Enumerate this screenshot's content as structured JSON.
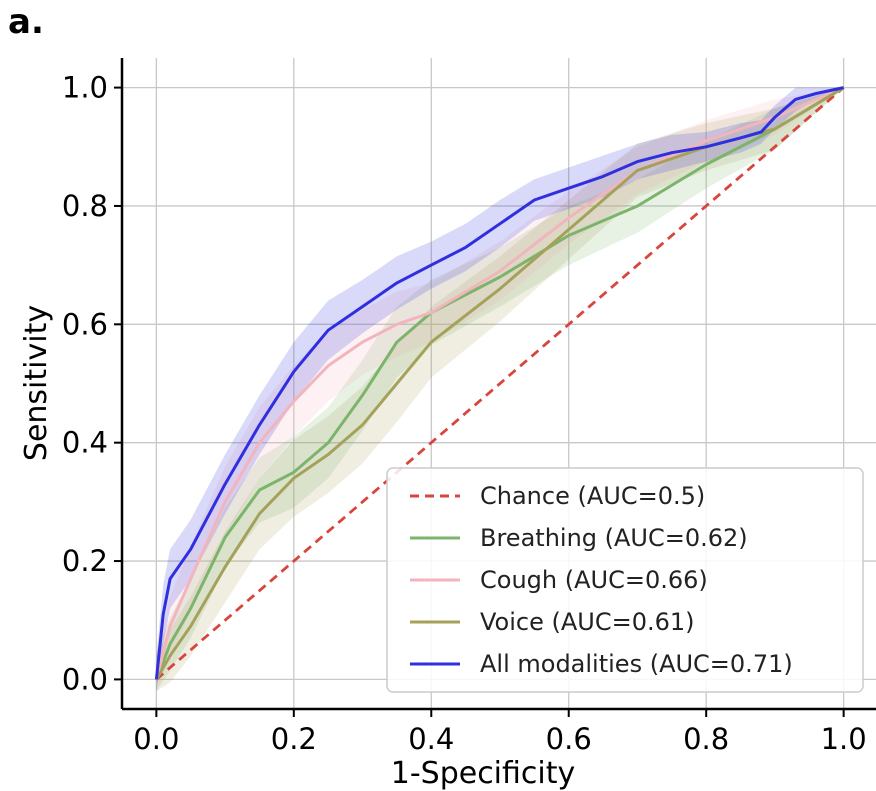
{
  "panel_label": "a.",
  "chart_data": {
    "type": "line",
    "title": "",
    "xlabel": "1-Specificity",
    "ylabel": "Sensitivity",
    "xlim": [
      -0.05,
      1.05
    ],
    "ylim": [
      -0.05,
      1.05
    ],
    "xticks": [
      0.0,
      0.2,
      0.4,
      0.6,
      0.8,
      1.0
    ],
    "yticks": [
      0.0,
      0.2,
      0.4,
      0.6,
      0.8,
      1.0
    ],
    "xtick_labels": [
      "0.0",
      "0.2",
      "0.4",
      "0.6",
      "0.8",
      "1.0"
    ],
    "ytick_labels": [
      "0.0",
      "0.2",
      "0.4",
      "0.6",
      "0.8",
      "1.0"
    ],
    "grid": true,
    "legend_position": "lower-right",
    "series": [
      {
        "name": "Chance (AUC=0.5)",
        "color": "#d9453c",
        "dashed": true,
        "x": [
          0.0,
          1.0
        ],
        "y": [
          0.0,
          1.0
        ]
      },
      {
        "name": "Breathing (AUC=0.62)",
        "color": "#7cb46b",
        "dashed": false,
        "x": [
          0.0,
          0.02,
          0.05,
          0.1,
          0.15,
          0.2,
          0.25,
          0.3,
          0.35,
          0.4,
          0.5,
          0.6,
          0.7,
          0.8,
          0.9,
          1.0
        ],
        "y": [
          0.0,
          0.06,
          0.12,
          0.24,
          0.32,
          0.35,
          0.4,
          0.48,
          0.57,
          0.62,
          0.68,
          0.75,
          0.8,
          0.87,
          0.93,
          1.0
        ],
        "band": [
          0.045,
          0.045,
          0.05,
          0.05,
          0.055,
          0.06,
          0.06,
          0.06,
          0.06,
          0.055,
          0.05,
          0.05,
          0.045,
          0.04,
          0.035,
          0.0
        ]
      },
      {
        "name": "Cough (AUC=0.66)",
        "color": "#f2b4bd",
        "dashed": false,
        "x": [
          0.0,
          0.02,
          0.05,
          0.1,
          0.15,
          0.2,
          0.25,
          0.3,
          0.35,
          0.4,
          0.5,
          0.6,
          0.7,
          0.8,
          0.9,
          1.0
        ],
        "y": [
          0.0,
          0.09,
          0.17,
          0.3,
          0.4,
          0.47,
          0.53,
          0.57,
          0.6,
          0.62,
          0.69,
          0.78,
          0.86,
          0.91,
          0.95,
          1.0
        ],
        "band": [
          0.045,
          0.05,
          0.055,
          0.06,
          0.06,
          0.06,
          0.06,
          0.055,
          0.055,
          0.05,
          0.05,
          0.045,
          0.04,
          0.035,
          0.03,
          0.0
        ]
      },
      {
        "name": "Voice (AUC=0.61)",
        "color": "#a4a25a",
        "dashed": false,
        "x": [
          0.0,
          0.02,
          0.05,
          0.1,
          0.15,
          0.2,
          0.25,
          0.3,
          0.35,
          0.4,
          0.5,
          0.6,
          0.7,
          0.8,
          0.9,
          1.0
        ],
        "y": [
          0.0,
          0.04,
          0.09,
          0.19,
          0.28,
          0.34,
          0.38,
          0.43,
          0.5,
          0.57,
          0.66,
          0.76,
          0.86,
          0.9,
          0.93,
          1.0
        ],
        "band": [
          0.04,
          0.045,
          0.05,
          0.06,
          0.06,
          0.065,
          0.065,
          0.065,
          0.065,
          0.06,
          0.055,
          0.05,
          0.045,
          0.04,
          0.035,
          0.0
        ]
      },
      {
        "name": "All modalities (AUC=0.71)",
        "color": "#2f2fe0",
        "dashed": false,
        "x": [
          0.0,
          0.01,
          0.02,
          0.05,
          0.1,
          0.15,
          0.2,
          0.25,
          0.3,
          0.35,
          0.4,
          0.45,
          0.5,
          0.55,
          0.6,
          0.65,
          0.7,
          0.75,
          0.8,
          0.85,
          0.88,
          0.9,
          0.93,
          0.96,
          1.0
        ],
        "y": [
          0.0,
          0.11,
          0.17,
          0.22,
          0.33,
          0.43,
          0.52,
          0.59,
          0.63,
          0.67,
          0.7,
          0.73,
          0.77,
          0.81,
          0.83,
          0.85,
          0.875,
          0.89,
          0.9,
          0.915,
          0.925,
          0.95,
          0.98,
          0.99,
          1.0
        ],
        "band": [
          0.04,
          0.05,
          0.05,
          0.05,
          0.05,
          0.05,
          0.05,
          0.05,
          0.045,
          0.045,
          0.04,
          0.04,
          0.04,
          0.035,
          0.035,
          0.035,
          0.03,
          0.03,
          0.025,
          0.025,
          0.02,
          0.02,
          0.02,
          0.01,
          0.0
        ]
      }
    ]
  }
}
